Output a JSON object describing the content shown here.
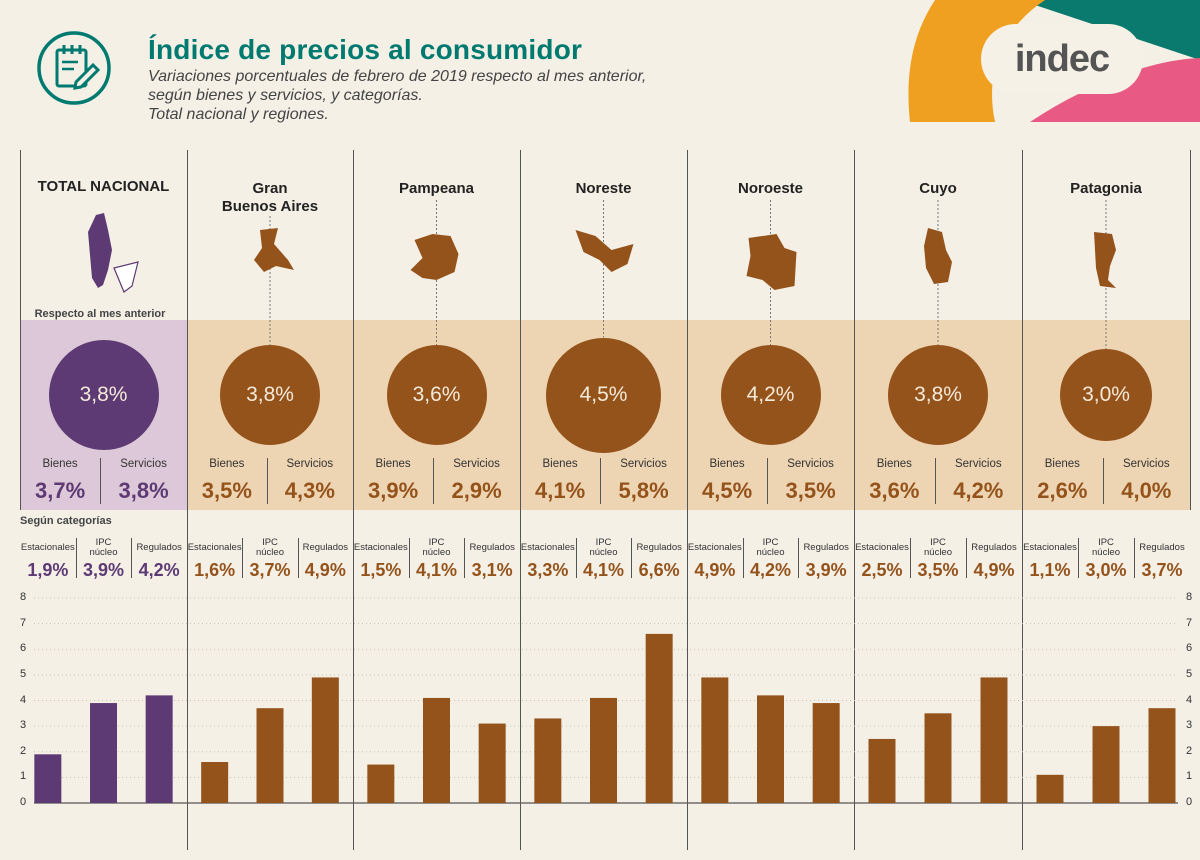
{
  "header": {
    "title": "Índice de precios al consumidor",
    "subtitle_lines": [
      "Variaciones porcentuales de febrero de 2019 respecto al mes anterior,",
      "según bienes y servicios, y categorías.",
      "Total nacional y regiones."
    ],
    "brand": "indec"
  },
  "labels": {
    "respect_prev": "Respecto al mes anterior",
    "goods": "Bienes",
    "services": "Servicios",
    "by_categories": "Según categorías",
    "cat_seasonal": "Estacionales",
    "cat_core_line1": "IPC",
    "cat_core_line2": "núcleo",
    "cat_regulated": "Regulados"
  },
  "colors": {
    "national": "#5e3a74",
    "region": "#95531c",
    "national_band": "#dcc8d8",
    "region_band": "#edd4b2",
    "title": "#007a70",
    "deco_orange": "#f0a020",
    "deco_pink": "#e85a83",
    "deco_green": "#0b7a6e"
  },
  "regions": [
    {
      "name": [
        "TOTAL NACIONAL"
      ],
      "general": "3,8%",
      "goods": "3,7%",
      "services": "3,8%",
      "cats": [
        "1,9%",
        "3,9%",
        "4,2%"
      ]
    },
    {
      "name": [
        "Gran",
        "Buenos Aires"
      ],
      "general": "3,8%",
      "goods": "3,5%",
      "services": "4,3%",
      "cats": [
        "1,6%",
        "3,7%",
        "4,9%"
      ]
    },
    {
      "name": [
        "Pampeana"
      ],
      "general": "3,6%",
      "goods": "3,9%",
      "services": "2,9%",
      "cats": [
        "1,5%",
        "4,1%",
        "3,1%"
      ]
    },
    {
      "name": [
        "Noreste"
      ],
      "general": "4,5%",
      "goods": "4,1%",
      "services": "5,8%",
      "cats": [
        "3,3%",
        "4,1%",
        "6,6%"
      ]
    },
    {
      "name": [
        "Noroeste"
      ],
      "general": "4,2%",
      "goods": "4,5%",
      "services": "3,5%",
      "cats": [
        "4,9%",
        "4,2%",
        "3,9%"
      ]
    },
    {
      "name": [
        "Cuyo"
      ],
      "general": "3,8%",
      "goods": "3,6%",
      "services": "4,2%",
      "cats": [
        "2,5%",
        "3,5%",
        "4,9%"
      ]
    },
    {
      "name": [
        "Patagonia"
      ],
      "general": "3,0%",
      "goods": "2,6%",
      "services": "4,0%",
      "cats": [
        "1,1%",
        "3,0%",
        "3,7%"
      ]
    }
  ],
  "chart_data": {
    "type": "bar",
    "groups": [
      "TOTAL NACIONAL",
      "Gran Buenos Aires",
      "Pampeana",
      "Noreste",
      "Noroeste",
      "Cuyo",
      "Patagonia"
    ],
    "categories": [
      "Estacionales",
      "IPC núcleo",
      "Regulados"
    ],
    "values": [
      [
        1.9,
        3.9,
        4.2
      ],
      [
        1.6,
        3.7,
        4.9
      ],
      [
        1.5,
        4.1,
        3.1
      ],
      [
        3.3,
        4.1,
        6.6
      ],
      [
        4.9,
        4.2,
        3.9
      ],
      [
        2.5,
        3.5,
        4.9
      ],
      [
        1.1,
        3.0,
        3.7
      ]
    ],
    "general": [
      3.8,
      3.8,
      3.6,
      4.5,
      4.2,
      3.8,
      3.0
    ],
    "ylim": [
      0,
      8
    ],
    "yticks": [
      "0",
      "1",
      "2",
      "3",
      "4",
      "5",
      "6",
      "7",
      "8"
    ],
    "grid": true
  }
}
